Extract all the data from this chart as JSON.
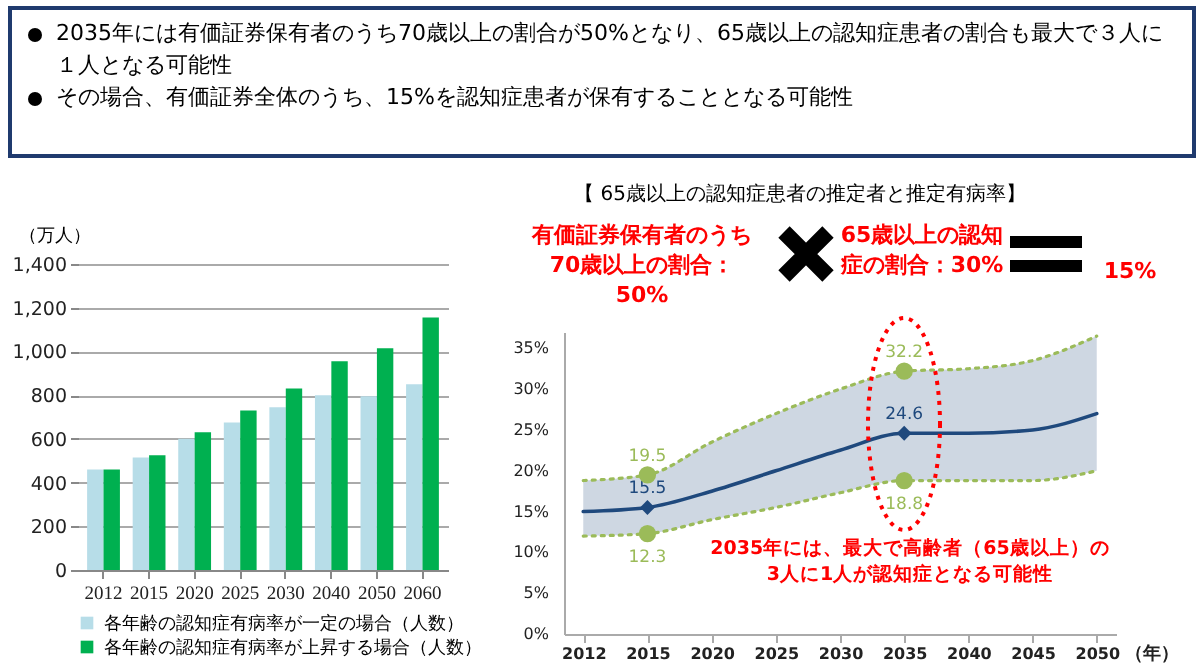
{
  "chart_data": [
    {
      "type": "bar",
      "annotations": [
        "2035年には有価証券保有者のうち70歳以上の割合が50%となり、65歳以上の認知症患者の割合も最大で３人に１人となる可能性",
        "その場合、有価証券全体のうち、15%を認知症患者が保有することとなる可能性"
      ],
      "ylabel": "（万人）",
      "categories": [
        "2012",
        "2015",
        "2020",
        "2025",
        "2030",
        "2040",
        "2050",
        "2060"
      ],
      "series": [
        {
          "name": "各年齢の認知症有病率が一定の場合（人数）",
          "color": "#b7dde8",
          "values": [
            460,
            515,
            600,
            675,
            745,
            800,
            795,
            850
          ]
        },
        {
          "name": "各年齢の認知症有病率が上昇する場合（人数）",
          "color": "#00b050",
          "values": [
            460,
            525,
            630,
            730,
            830,
            955,
            1015,
            1155
          ]
        }
      ],
      "ylim": [
        0,
        1400
      ],
      "yticks": [
        0,
        200,
        400,
        600,
        {
          "value": 800,
          "label": "800"
        },
        {
          "value": 1000,
          "label": "1,000"
        },
        {
          "value": 1200,
          "label": "1,200"
        },
        {
          "value": 1400,
          "label": "1,400"
        }
      ],
      "grid": "y",
      "legend": "bottom"
    },
    {
      "type": "line",
      "title": "【 65歳以上の認知症患者の推定者と推定有病率】",
      "xlabel": "（年）",
      "categories": [
        "2012",
        "2015",
        "2020",
        "2025",
        "2030",
        "2035",
        "2040",
        "2045",
        "2050"
      ],
      "annotations": [
        "有価証券保有者のうち70歳以上の割合：50%",
        "65歳以上の認知症の割合：30%",
        "15%",
        "2035年には、最大で高齢者（65歳以上）の3人に1人が認知症となる可能性"
      ],
      "series": [
        {
          "color": "#1f497d",
          "values": [
            15.0,
            15.5,
            17.5,
            20.0,
            22.5,
            24.6,
            24.6,
            25.0,
            27.0
          ],
          "lower": [
            12.0,
            12.3,
            14.0,
            15.5,
            17.3,
            18.8,
            18.8,
            18.8,
            20.0
          ],
          "upper": [
            18.8,
            19.5,
            23.5,
            27.0,
            30.0,
            32.2,
            32.5,
            33.5,
            36.5
          ],
          "line_style": "solid",
          "marker": "none"
        },
        {
          "color": "#9bbb59",
          "values": [
            18.8,
            19.5,
            23.5,
            27.0,
            30.0,
            32.2,
            32.5,
            33.5,
            36.5
          ],
          "line_style": "dotted",
          "marker": "none"
        },
        {
          "color": "#9bbb59",
          "values": [
            12.0,
            12.3,
            14.0,
            15.5,
            17.3,
            18.8,
            18.8,
            18.8,
            20.0
          ],
          "line_style": "dotted",
          "marker": "none"
        },
        {
          "type": "scatter",
          "color": "#1f497d",
          "values": [
            null,
            15.5,
            null,
            null,
            null,
            24.6,
            null,
            null,
            null
          ],
          "marker": "diamond",
          "value_labels": [
            null,
            "15.5",
            null,
            null,
            null,
            "24.6",
            null,
            null,
            null
          ]
        },
        {
          "type": "scatter",
          "color": "#9bbb59",
          "values": [
            null,
            19.5,
            null,
            null,
            null,
            32.2,
            null,
            null,
            null
          ],
          "marker": "circle",
          "value_labels": [
            null,
            "19.5",
            null,
            null,
            null,
            "32.2",
            null,
            null,
            null
          ]
        },
        {
          "type": "scatter",
          "color": "#9bbb59",
          "values": [
            null,
            12.3,
            null,
            null,
            null,
            18.8,
            null,
            null,
            null
          ],
          "marker": "circle",
          "value_labels": [
            null,
            "12.3",
            null,
            null,
            null,
            "18.8",
            null,
            null,
            null
          ]
        }
      ],
      "ylim": [
        0,
        37
      ],
      "yticks": [
        {
          "value": 0,
          "label": "0%"
        },
        {
          "value": 5,
          "label": "5%"
        },
        {
          "value": 10,
          "label": "10%"
        },
        {
          "value": 15,
          "label": "15%"
        },
        {
          "value": 20,
          "label": "20%"
        },
        {
          "value": 25,
          "label": "25%"
        },
        {
          "value": 30,
          "label": "30%"
        },
        {
          "value": 35,
          "label": "35%"
        }
      ],
      "grid": false
    }
  ]
}
